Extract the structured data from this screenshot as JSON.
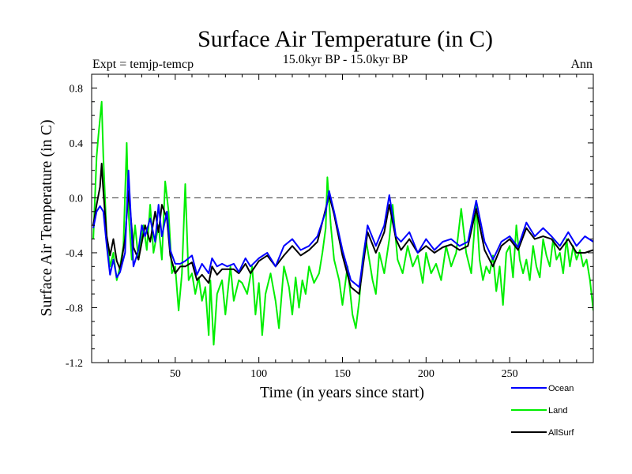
{
  "chart_data": {
    "type": "line",
    "title": "Surface Air Temperature (in C)",
    "subtitle_left": "Expt = temjp-temcp",
    "subtitle_center": "15.0kyr BP - 15.0kyr BP",
    "subtitle_right": "Ann",
    "xlabel": "Time (in years since start)",
    "ylabel": "Surface Air Temperature (in C)",
    "xlim": [
      0,
      300
    ],
    "ylim": [
      -1.2,
      0.9
    ],
    "xticks": [
      50,
      100,
      150,
      200,
      250
    ],
    "yticks": [
      "0.8",
      "0.4",
      "0.0",
      "-0.4",
      "-0.8",
      "-1.2"
    ],
    "zero_line": 0.0,
    "legend": [
      "Ocean",
      "Land",
      "AllSurf"
    ],
    "colors": {
      "Ocean": "#0000ff",
      "Land": "#00ee00",
      "AllSurf": "#000000"
    },
    "series": [
      {
        "name": "AllSurf",
        "x": [
          1,
          3,
          5,
          6,
          7,
          9,
          11,
          13,
          15,
          17,
          20,
          22,
          25,
          28,
          32,
          35,
          38,
          40,
          42,
          45,
          47,
          50,
          53,
          56,
          60,
          63,
          66,
          70,
          72,
          75,
          78,
          81,
          85,
          88,
          92,
          95,
          100,
          105,
          110,
          115,
          120,
          125,
          130,
          135,
          140,
          142,
          145,
          150,
          155,
          160,
          165,
          170,
          175,
          178,
          182,
          185,
          190,
          195,
          200,
          205,
          210,
          215,
          220,
          225,
          230,
          235,
          240,
          245,
          250,
          255,
          260,
          265,
          270,
          275,
          280,
          285,
          290,
          295,
          300
        ],
        "values": [
          -0.2,
          -0.05,
          0.08,
          0.25,
          0.05,
          -0.28,
          -0.42,
          -0.3,
          -0.46,
          -0.52,
          -0.3,
          0.05,
          -0.36,
          -0.45,
          -0.2,
          -0.32,
          -0.1,
          -0.25,
          -0.05,
          -0.15,
          -0.42,
          -0.55,
          -0.5,
          -0.5,
          -0.47,
          -0.6,
          -0.56,
          -0.62,
          -0.5,
          -0.56,
          -0.52,
          -0.52,
          -0.52,
          -0.55,
          -0.48,
          -0.55,
          -0.46,
          -0.42,
          -0.5,
          -0.42,
          -0.35,
          -0.42,
          -0.38,
          -0.32,
          -0.08,
          0.02,
          -0.12,
          -0.42,
          -0.65,
          -0.7,
          -0.25,
          -0.4,
          -0.25,
          -0.05,
          -0.3,
          -0.38,
          -0.3,
          -0.4,
          -0.35,
          -0.4,
          -0.36,
          -0.34,
          -0.38,
          -0.35,
          -0.08,
          -0.38,
          -0.5,
          -0.35,
          -0.3,
          -0.38,
          -0.22,
          -0.3,
          -0.28,
          -0.3,
          -0.38,
          -0.3,
          -0.4,
          -0.4,
          -0.38
        ]
      },
      {
        "name": "Ocean",
        "x": [
          1,
          3,
          5,
          7,
          9,
          11,
          13,
          15,
          17,
          20,
          22,
          25,
          28,
          30,
          32,
          35,
          38,
          40,
          42,
          45,
          47,
          50,
          53,
          56,
          60,
          63,
          66,
          70,
          72,
          75,
          78,
          81,
          85,
          88,
          92,
          95,
          100,
          105,
          110,
          115,
          120,
          125,
          130,
          135,
          140,
          142,
          145,
          150,
          155,
          160,
          165,
          170,
          175,
          178,
          182,
          185,
          190,
          195,
          200,
          205,
          210,
          215,
          220,
          225,
          230,
          235,
          240,
          245,
          250,
          255,
          260,
          265,
          270,
          275,
          280,
          285,
          290,
          295,
          300
        ],
        "values": [
          -0.22,
          -0.1,
          -0.06,
          -0.1,
          -0.35,
          -0.56,
          -0.45,
          -0.58,
          -0.54,
          -0.4,
          0.2,
          -0.5,
          -0.38,
          -0.2,
          -0.28,
          -0.15,
          -0.32,
          -0.05,
          -0.28,
          -0.1,
          -0.38,
          -0.48,
          -0.48,
          -0.46,
          -0.42,
          -0.56,
          -0.48,
          -0.55,
          -0.44,
          -0.5,
          -0.48,
          -0.5,
          -0.48,
          -0.54,
          -0.44,
          -0.5,
          -0.44,
          -0.4,
          -0.5,
          -0.35,
          -0.3,
          -0.38,
          -0.35,
          -0.28,
          -0.1,
          0.05,
          -0.1,
          -0.38,
          -0.6,
          -0.65,
          -0.2,
          -0.35,
          -0.2,
          0.02,
          -0.28,
          -0.32,
          -0.25,
          -0.4,
          -0.3,
          -0.38,
          -0.32,
          -0.3,
          -0.35,
          -0.32,
          -0.02,
          -0.32,
          -0.45,
          -0.32,
          -0.28,
          -0.36,
          -0.18,
          -0.28,
          -0.22,
          -0.28,
          -0.35,
          -0.25,
          -0.35,
          -0.28,
          -0.32
        ]
      },
      {
        "name": "Land",
        "x": [
          1,
          3,
          4,
          6,
          7,
          9,
          11,
          13,
          15,
          17,
          19,
          21,
          22,
          24,
          26,
          28,
          31,
          33,
          35,
          37,
          40,
          42,
          44,
          46,
          48,
          50,
          52,
          54,
          56,
          58,
          60,
          62,
          64,
          66,
          68,
          70,
          71,
          73,
          75,
          78,
          80,
          83,
          85,
          88,
          90,
          93,
          96,
          98,
          100,
          102,
          104,
          107,
          110,
          112,
          115,
          118,
          120,
          122,
          124,
          126,
          128,
          130,
          133,
          136,
          138,
          140,
          141,
          143,
          145,
          148,
          150,
          153,
          156,
          158,
          160,
          162,
          164,
          166,
          168,
          170,
          172,
          175,
          178,
          180,
          183,
          186,
          189,
          192,
          195,
          198,
          200,
          203,
          206,
          209,
          212,
          215,
          218,
          221,
          224,
          227,
          230,
          232,
          234,
          236,
          238,
          240,
          242,
          244,
          246,
          248,
          250,
          252,
          254,
          256,
          258,
          260,
          262,
          264,
          266,
          268,
          270,
          272,
          274,
          276,
          278,
          280,
          282,
          284,
          286,
          288,
          290,
          292,
          294,
          296,
          298,
          300
        ],
        "values": [
          -0.3,
          0.3,
          0.45,
          0.7,
          0.3,
          -0.3,
          -0.5,
          -0.4,
          -0.6,
          -0.5,
          -0.35,
          0.4,
          -0.1,
          -0.45,
          -0.2,
          -0.45,
          -0.2,
          -0.38,
          -0.05,
          -0.4,
          -0.2,
          -0.45,
          0.12,
          -0.1,
          -0.55,
          -0.5,
          -0.82,
          -0.55,
          0.1,
          -0.6,
          -0.55,
          -0.7,
          -0.58,
          -0.75,
          -0.65,
          -1.0,
          -0.6,
          -1.07,
          -0.7,
          -0.6,
          -0.85,
          -0.5,
          -0.75,
          -0.6,
          -0.62,
          -0.7,
          -0.5,
          -0.85,
          -0.62,
          -1.0,
          -0.7,
          -0.55,
          -0.75,
          -0.95,
          -0.5,
          -0.65,
          -0.85,
          -0.58,
          -0.8,
          -0.6,
          -0.7,
          -0.5,
          -0.62,
          -0.55,
          -0.4,
          -0.22,
          0.15,
          -0.2,
          -0.45,
          -0.6,
          -0.78,
          -0.5,
          -0.85,
          -0.95,
          -0.75,
          -0.45,
          -0.3,
          -0.45,
          -0.6,
          -0.7,
          -0.4,
          -0.55,
          -0.3,
          -0.05,
          -0.45,
          -0.55,
          -0.35,
          -0.5,
          -0.42,
          -0.62,
          -0.4,
          -0.55,
          -0.48,
          -0.6,
          -0.35,
          -0.5,
          -0.4,
          -0.08,
          -0.4,
          -0.55,
          -0.05,
          -0.45,
          -0.6,
          -0.5,
          -0.55,
          -0.42,
          -0.68,
          -0.5,
          -0.78,
          -0.4,
          -0.35,
          -0.58,
          -0.2,
          -0.45,
          -0.55,
          -0.45,
          -0.6,
          -0.35,
          -0.5,
          -0.58,
          -0.3,
          -0.42,
          -0.5,
          -0.3,
          -0.45,
          -0.4,
          -0.55,
          -0.3,
          -0.5,
          -0.35,
          -0.45,
          -0.38,
          -0.5,
          -0.45,
          -0.6,
          -0.82
        ]
      }
    ]
  }
}
